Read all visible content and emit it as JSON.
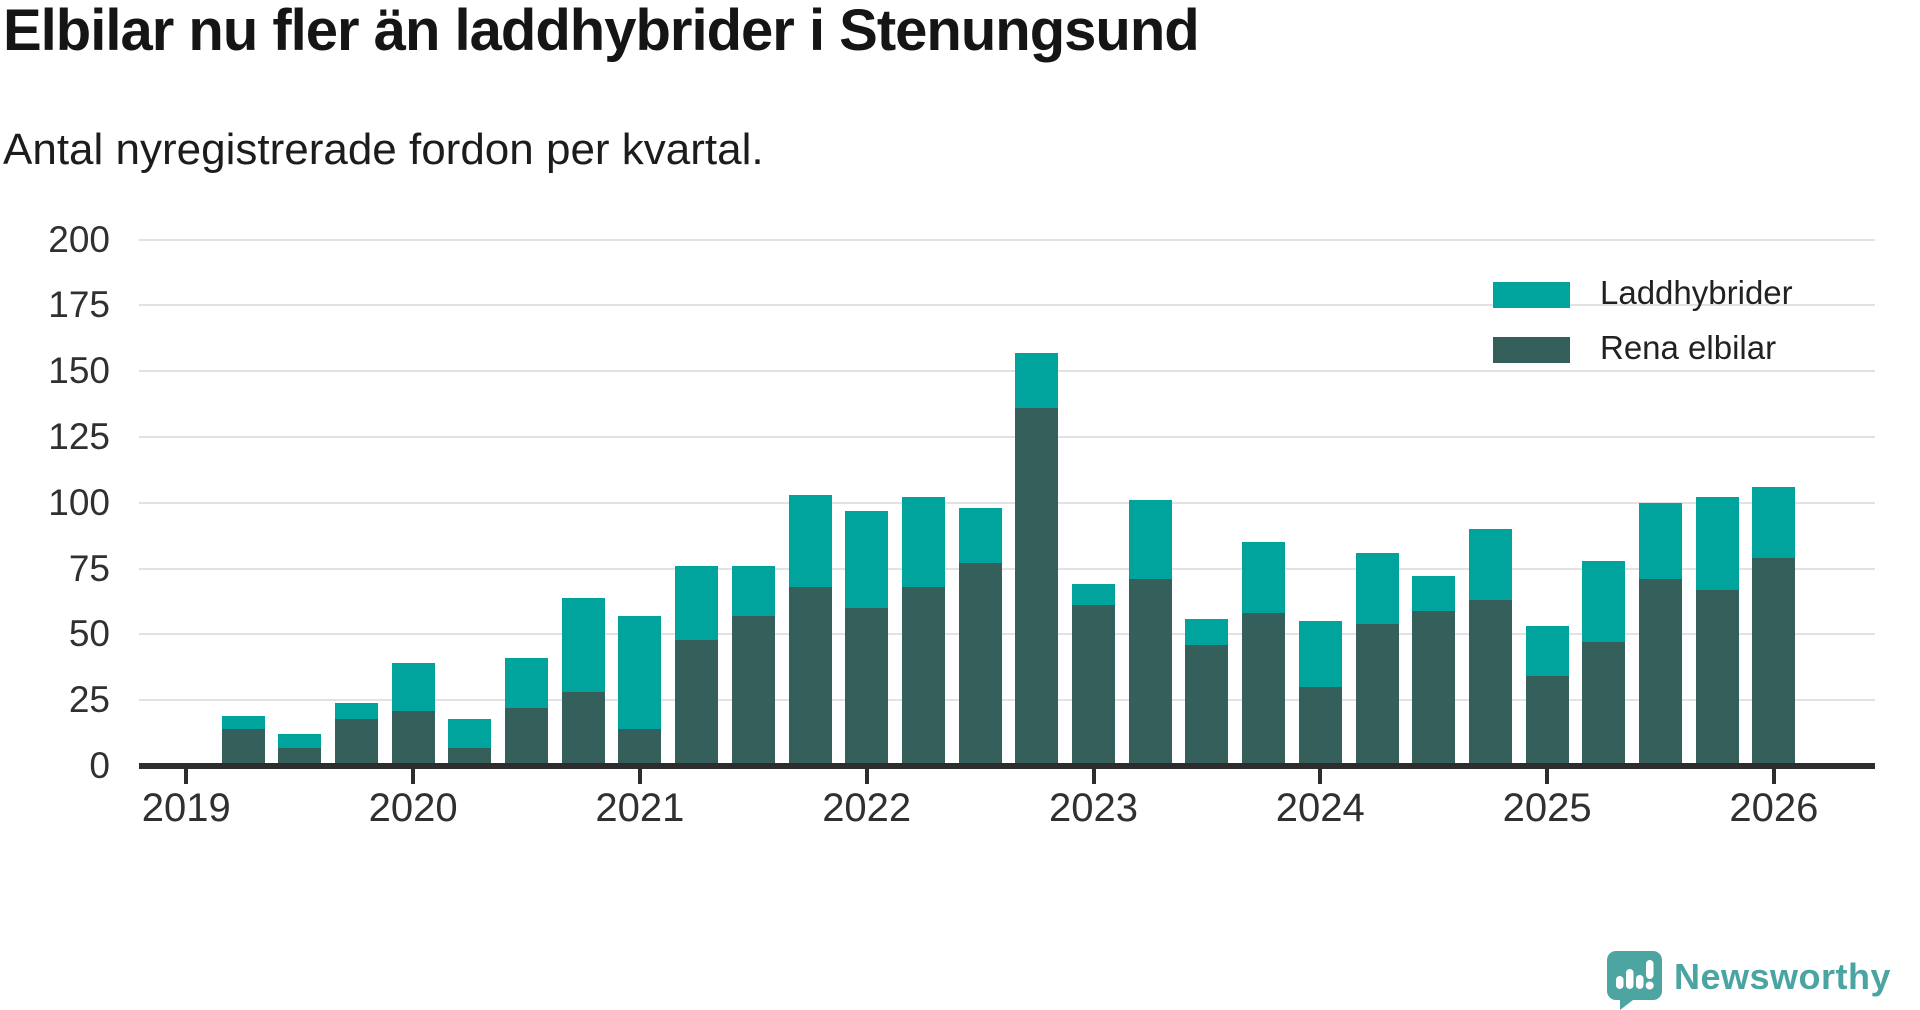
{
  "header": {
    "title": "Elbilar nu fler än laddhybrider i Stenungsund",
    "subtitle": "Antal nyregistrerade fordon per kvartal."
  },
  "legend": {
    "items": [
      {
        "label": "Laddhybrider",
        "color": "#00a49c"
      },
      {
        "label": "Rena elbilar",
        "color": "#355f5a"
      }
    ]
  },
  "branding": {
    "wordmark": "Newsworthy",
    "color": "#4aa5a2",
    "icon": "newsworthy-speech-bubble-bar-chart-icon",
    "icon_color": "#4ca5a1"
  },
  "colors": {
    "background": "#ffffff",
    "grid": "#e2e2e2",
    "axis": "#2d2d2d",
    "tick_label": "#303030"
  },
  "chart_data": {
    "type": "bar",
    "stacked": true,
    "title": "Elbilar nu fler än laddhybrider i Stenungsund",
    "subtitle": "Antal nyregistrerade fordon per kvartal.",
    "xlabel": "",
    "ylabel": "",
    "ylim": [
      0,
      200
    ],
    "yticks": [
      0,
      25,
      50,
      75,
      100,
      125,
      150,
      175,
      200
    ],
    "x_year_ticks": [
      2019,
      2020,
      2021,
      2022,
      2023,
      2024,
      2025,
      2026
    ],
    "grid": true,
    "legend_position": "top-right",
    "categories": [
      "2019-Q2",
      "2019-Q3",
      "2019-Q4",
      "2020-Q1",
      "2020-Q2",
      "2020-Q3",
      "2020-Q4",
      "2021-Q1",
      "2021-Q2",
      "2021-Q3",
      "2021-Q4",
      "2022-Q1",
      "2022-Q2",
      "2022-Q3",
      "2022-Q4",
      "2023-Q1",
      "2023-Q2",
      "2023-Q3",
      "2023-Q4",
      "2024-Q1",
      "2024-Q2",
      "2024-Q3",
      "2024-Q4",
      "2025-Q1",
      "2025-Q2",
      "2025-Q3",
      "2025-Q4",
      "2026-Q1"
    ],
    "series": [
      {
        "name": "Rena elbilar",
        "color": "#355f5a",
        "stack": "bottom",
        "values": [
          14,
          7,
          18,
          21,
          7,
          22,
          28,
          14,
          48,
          57,
          68,
          60,
          68,
          77,
          136,
          61,
          71,
          46,
          58,
          30,
          54,
          59,
          63,
          34,
          47,
          71,
          67,
          79
        ]
      },
      {
        "name": "Laddhybrider",
        "color": "#00a49c",
        "stack": "top",
        "values": [
          5,
          5,
          6,
          18,
          11,
          19,
          36,
          43,
          28,
          19,
          35,
          37,
          34,
          21,
          21,
          8,
          30,
          10,
          27,
          25,
          27,
          13,
          27,
          19,
          31,
          29,
          35,
          27
        ]
      }
    ]
  }
}
